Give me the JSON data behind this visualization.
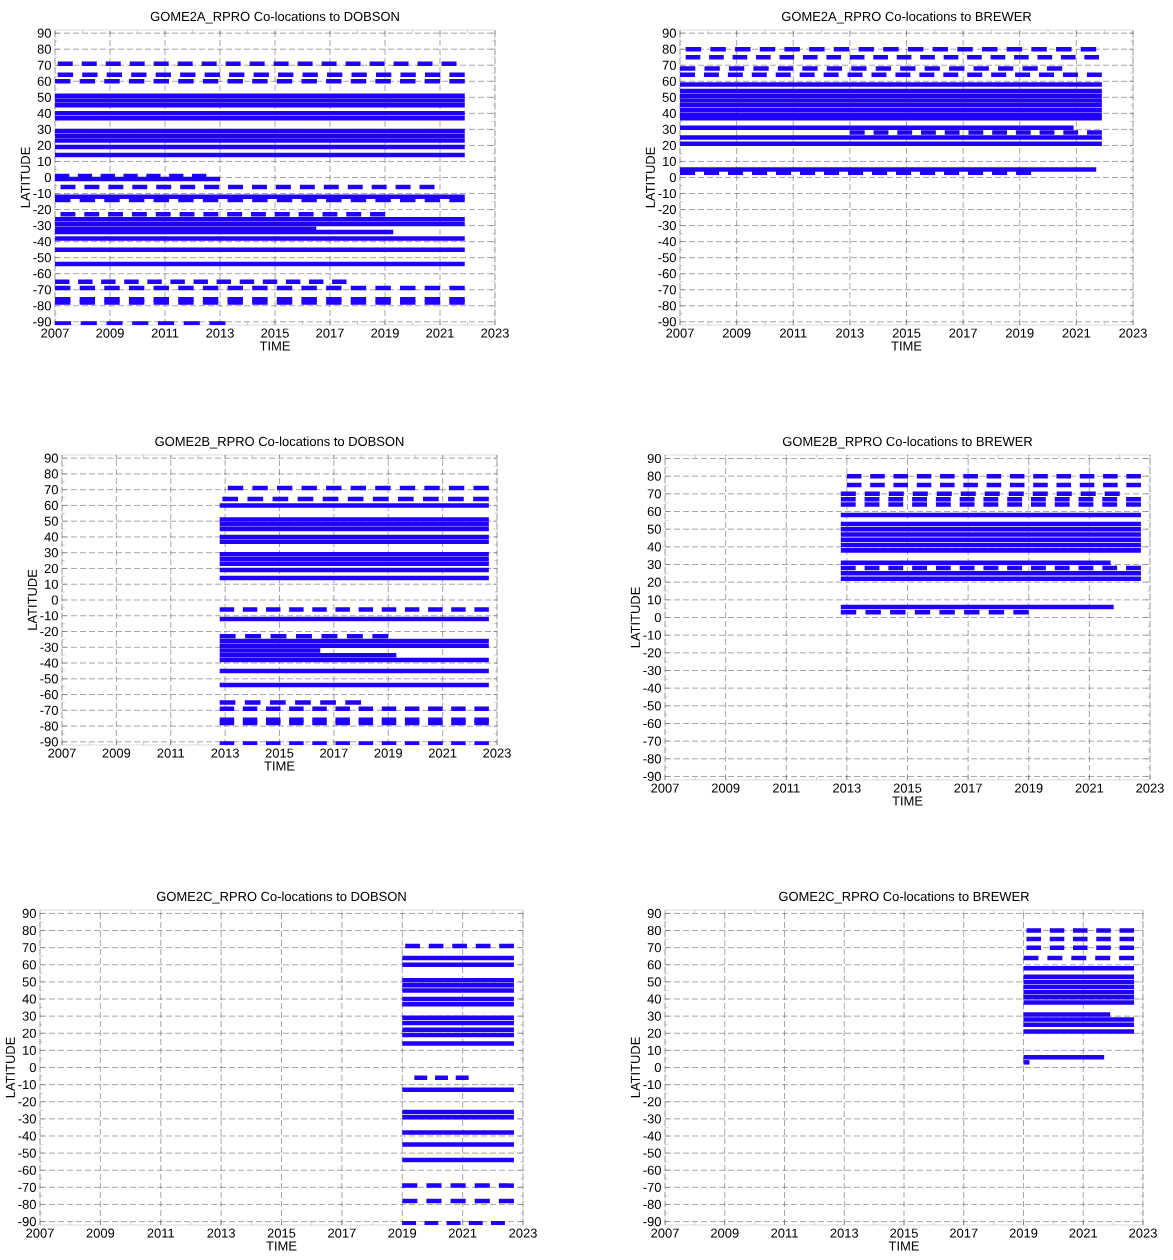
{
  "chart_data": [
    {
      "type": "line",
      "title": "GOME2A_RPRO Co-locations to DOBSON",
      "xlabel": "TIME",
      "ylabel": "LATITUDE",
      "xlim": [
        2007,
        2023
      ],
      "ylim": [
        -92,
        92
      ],
      "xticks": [
        2007,
        2009,
        2011,
        2013,
        2015,
        2017,
        2019,
        2021,
        2023
      ],
      "yticks": [
        -90,
        -80,
        -70,
        -60,
        -50,
        -40,
        -30,
        -20,
        -10,
        0,
        10,
        20,
        30,
        40,
        50,
        60,
        70,
        80,
        90
      ],
      "grid": true,
      "series": [
        {
          "color": "#1f00ff",
          "line_style": "dashed",
          "x": [
            2007.1,
            2021.6
          ],
          "values": [
            71,
            71
          ]
        },
        {
          "color": "#1f00ff",
          "line_style": "dashed",
          "x": [
            2007.1,
            2021.9
          ],
          "values": [
            64,
            64
          ]
        },
        {
          "color": "#1f00ff",
          "line_style": "dashed",
          "x": [
            2007,
            2021.9
          ],
          "values": [
            60,
            60
          ]
        },
        {
          "color": "#1f00ff",
          "line_style": "solid",
          "x": [
            2007,
            2021.9
          ],
          "values": [
            51,
            51
          ]
        },
        {
          "color": "#1f00ff",
          "line_style": "solid",
          "x": [
            2007,
            2021.9
          ],
          "values": [
            48,
            48
          ]
        },
        {
          "color": "#1f00ff",
          "line_style": "solid",
          "x": [
            2007,
            2021.9
          ],
          "values": [
            45,
            45
          ]
        },
        {
          "color": "#1f00ff",
          "line_style": "solid",
          "x": [
            2007,
            2021.9
          ],
          "values": [
            40,
            40
          ]
        },
        {
          "color": "#1f00ff",
          "line_style": "solid",
          "x": [
            2007,
            2021.9
          ],
          "values": [
            37,
            37
          ]
        },
        {
          "color": "#1f00ff",
          "line_style": "solid",
          "x": [
            2007,
            2021.9
          ],
          "values": [
            29,
            29
          ]
        },
        {
          "color": "#1f00ff",
          "line_style": "solid",
          "x": [
            2007,
            2021.9
          ],
          "values": [
            26,
            26
          ]
        },
        {
          "color": "#1f00ff",
          "line_style": "solid",
          "x": [
            2007,
            2021.9
          ],
          "values": [
            23,
            23
          ]
        },
        {
          "color": "#1f00ff",
          "line_style": "solid",
          "x": [
            2007,
            2021.9
          ],
          "values": [
            19,
            19
          ]
        },
        {
          "color": "#1f00ff",
          "line_style": "solid",
          "x": [
            2007,
            2021.9
          ],
          "values": [
            14,
            14
          ]
        },
        {
          "color": "#1f00ff",
          "line_style": "dashed",
          "x": [
            2007,
            2012.5
          ],
          "values": [
            1,
            1
          ]
        },
        {
          "color": "#1f00ff",
          "line_style": "solid",
          "x": [
            2007,
            2013
          ],
          "values": [
            -1,
            -1
          ]
        },
        {
          "color": "#1f00ff",
          "line_style": "dashed",
          "x": [
            2007.2,
            2020.8
          ],
          "values": [
            -6,
            -6
          ]
        },
        {
          "color": "#1f00ff",
          "line_style": "solid",
          "x": [
            2007,
            2021.9
          ],
          "values": [
            -12,
            -12
          ]
        },
        {
          "color": "#1f00ff",
          "line_style": "dashed",
          "x": [
            2007,
            2021.9
          ],
          "values": [
            -14,
            -14
          ]
        },
        {
          "color": "#1f00ff",
          "line_style": "dashed",
          "x": [
            2007.2,
            2019
          ],
          "values": [
            -23,
            -23
          ]
        },
        {
          "color": "#1f00ff",
          "line_style": "solid",
          "x": [
            2007,
            2021.9
          ],
          "values": [
            -26,
            -26
          ]
        },
        {
          "color": "#1f00ff",
          "line_style": "solid",
          "x": [
            2007,
            2021.9
          ],
          "values": [
            -29,
            -29
          ]
        },
        {
          "color": "#1f00ff",
          "line_style": "solid",
          "x": [
            2007,
            2016.5
          ],
          "values": [
            -32,
            -32
          ]
        },
        {
          "color": "#1f00ff",
          "line_style": "solid",
          "x": [
            2007,
            2019.3
          ],
          "values": [
            -34,
            -34
          ]
        },
        {
          "color": "#1f00ff",
          "line_style": "solid",
          "x": [
            2007,
            2021.9
          ],
          "values": [
            -38,
            -38
          ]
        },
        {
          "color": "#1f00ff",
          "line_style": "solid",
          "x": [
            2007,
            2021.9
          ],
          "values": [
            -45,
            -45
          ]
        },
        {
          "color": "#1f00ff",
          "line_style": "solid",
          "x": [
            2007,
            2021.9
          ],
          "values": [
            -54,
            -54
          ]
        },
        {
          "color": "#1f00ff",
          "line_style": "dashed",
          "x": [
            2007,
            2017.6
          ],
          "values": [
            -65,
            -65
          ]
        },
        {
          "color": "#1f00ff",
          "line_style": "dashed",
          "x": [
            2007,
            2021.9
          ],
          "values": [
            -69,
            -69
          ]
        },
        {
          "color": "#1f00ff",
          "line_style": "dashed",
          "x": [
            2007,
            2021.9
          ],
          "values": [
            -76,
            -76
          ]
        },
        {
          "color": "#1f00ff",
          "line_style": "dashed",
          "x": [
            2007,
            2021.9
          ],
          "values": [
            -78,
            -78
          ]
        },
        {
          "color": "#1f00ff",
          "line_style": "dashed",
          "x": [
            2007,
            2013.2
          ],
          "values": [
            -91,
            -91
          ]
        }
      ]
    },
    {
      "type": "line",
      "title": "GOME2A_RPRO Co-locations to BREWER",
      "xlabel": "TIME",
      "ylabel": "LATITUDE",
      "xlim": [
        2007,
        2023
      ],
      "ylim": [
        -92,
        92
      ],
      "xticks": [
        2007,
        2009,
        2011,
        2013,
        2015,
        2017,
        2019,
        2021,
        2023
      ],
      "yticks": [
        -90,
        -80,
        -70,
        -60,
        -50,
        -40,
        -30,
        -20,
        -10,
        0,
        10,
        20,
        30,
        40,
        50,
        60,
        70,
        80,
        90
      ],
      "grid": true,
      "series": [
        {
          "color": "#1f00ff",
          "line_style": "dashed",
          "x": [
            2007.2,
            2021.7
          ],
          "values": [
            80,
            80
          ]
        },
        {
          "color": "#1f00ff",
          "line_style": "dashed",
          "x": [
            2007.2,
            2021.8
          ],
          "values": [
            75,
            75
          ]
        },
        {
          "color": "#1f00ff",
          "line_style": "dashed",
          "x": [
            2007,
            2020.5
          ],
          "values": [
            68,
            68
          ]
        },
        {
          "color": "#1f00ff",
          "line_style": "dashed",
          "x": [
            2007,
            2021.9
          ],
          "values": [
            64,
            64
          ]
        },
        {
          "color": "#1f00ff",
          "line_style": "solid",
          "x": [
            2007,
            2021.9
          ],
          "values": [
            58,
            58
          ]
        },
        {
          "color": "#1f00ff",
          "line_style": "solid",
          "x": [
            2007,
            2021.9
          ],
          "values": [
            54,
            54
          ]
        },
        {
          "color": "#1f00ff",
          "line_style": "solid",
          "x": [
            2007,
            2021.9
          ],
          "values": [
            51,
            51
          ]
        },
        {
          "color": "#1f00ff",
          "line_style": "solid",
          "x": [
            2007,
            2021.9
          ],
          "values": [
            48,
            48
          ]
        },
        {
          "color": "#1f00ff",
          "line_style": "solid",
          "x": [
            2007,
            2021.9
          ],
          "values": [
            45,
            45
          ]
        },
        {
          "color": "#1f00ff",
          "line_style": "solid",
          "x": [
            2007,
            2021.9
          ],
          "values": [
            42,
            42
          ]
        },
        {
          "color": "#1f00ff",
          "line_style": "solid",
          "x": [
            2007,
            2021.9
          ],
          "values": [
            39,
            39
          ]
        },
        {
          "color": "#1f00ff",
          "line_style": "solid",
          "x": [
            2007,
            2021.9
          ],
          "values": [
            37,
            37
          ]
        },
        {
          "color": "#1f00ff",
          "line_style": "solid",
          "x": [
            2007,
            2020.9
          ],
          "values": [
            31,
            31
          ]
        },
        {
          "color": "#1f00ff",
          "line_style": "dashed",
          "x": [
            2013,
            2021.9
          ],
          "values": [
            28,
            28
          ]
        },
        {
          "color": "#1f00ff",
          "line_style": "solid",
          "x": [
            2007,
            2021.9
          ],
          "values": [
            25,
            25
          ]
        },
        {
          "color": "#1f00ff",
          "line_style": "solid",
          "x": [
            2007,
            2021.9
          ],
          "values": [
            21,
            21
          ]
        },
        {
          "color": "#1f00ff",
          "line_style": "solid",
          "x": [
            2007,
            2021.7
          ],
          "values": [
            5,
            5
          ]
        },
        {
          "color": "#1f00ff",
          "line_style": "dashed",
          "x": [
            2007,
            2019.4
          ],
          "values": [
            3,
            3
          ]
        }
      ]
    },
    {
      "type": "line",
      "title": "GOME2B_RPRO Co-locations to DOBSON",
      "xlabel": "TIME",
      "ylabel": "LATITUDE",
      "xlim": [
        2007,
        2023
      ],
      "ylim": [
        -92,
        92
      ],
      "xticks": [
        2007,
        2009,
        2011,
        2013,
        2015,
        2017,
        2019,
        2021,
        2023
      ],
      "yticks": [
        -90,
        -80,
        -70,
        -60,
        -50,
        -40,
        -30,
        -20,
        -10,
        0,
        10,
        20,
        30,
        40,
        50,
        60,
        70,
        80,
        90
      ],
      "grid": true,
      "series": [
        {
          "color": "#1f00ff",
          "line_style": "dashed",
          "x": [
            2013.1,
            2022.7
          ],
          "values": [
            71,
            71
          ]
        },
        {
          "color": "#1f00ff",
          "line_style": "dashed",
          "x": [
            2012.9,
            2022.7
          ],
          "values": [
            64,
            64
          ]
        },
        {
          "color": "#1f00ff",
          "line_style": "solid",
          "x": [
            2012.8,
            2022.7
          ],
          "values": [
            60,
            60
          ]
        },
        {
          "color": "#1f00ff",
          "line_style": "solid",
          "x": [
            2012.8,
            2022.7
          ],
          "values": [
            51,
            51
          ]
        },
        {
          "color": "#1f00ff",
          "line_style": "solid",
          "x": [
            2012.8,
            2022.7
          ],
          "values": [
            48,
            48
          ]
        },
        {
          "color": "#1f00ff",
          "line_style": "solid",
          "x": [
            2012.8,
            2022.7
          ],
          "values": [
            45,
            45
          ]
        },
        {
          "color": "#1f00ff",
          "line_style": "solid",
          "x": [
            2012.8,
            2022.7
          ],
          "values": [
            40,
            40
          ]
        },
        {
          "color": "#1f00ff",
          "line_style": "solid",
          "x": [
            2012.8,
            2022.7
          ],
          "values": [
            37,
            37
          ]
        },
        {
          "color": "#1f00ff",
          "line_style": "solid",
          "x": [
            2012.8,
            2022.7
          ],
          "values": [
            29,
            29
          ]
        },
        {
          "color": "#1f00ff",
          "line_style": "solid",
          "x": [
            2012.8,
            2022.7
          ],
          "values": [
            26,
            26
          ]
        },
        {
          "color": "#1f00ff",
          "line_style": "solid",
          "x": [
            2012.8,
            2022.7
          ],
          "values": [
            23,
            23
          ]
        },
        {
          "color": "#1f00ff",
          "line_style": "solid",
          "x": [
            2012.8,
            2022.7
          ],
          "values": [
            19,
            19
          ]
        },
        {
          "color": "#1f00ff",
          "line_style": "solid",
          "x": [
            2012.8,
            2022.7
          ],
          "values": [
            14,
            14
          ]
        },
        {
          "color": "#1f00ff",
          "line_style": "dashed",
          "x": [
            2012.8,
            2022.7
          ],
          "values": [
            -6,
            -6
          ]
        },
        {
          "color": "#1f00ff",
          "line_style": "solid",
          "x": [
            2012.8,
            2022.7
          ],
          "values": [
            -12,
            -12
          ]
        },
        {
          "color": "#1f00ff",
          "line_style": "dashed",
          "x": [
            2012.8,
            2019
          ],
          "values": [
            -23,
            -23
          ]
        },
        {
          "color": "#1f00ff",
          "line_style": "solid",
          "x": [
            2012.8,
            2022.7
          ],
          "values": [
            -26,
            -26
          ]
        },
        {
          "color": "#1f00ff",
          "line_style": "solid",
          "x": [
            2012.8,
            2022.7
          ],
          "values": [
            -29,
            -29
          ]
        },
        {
          "color": "#1f00ff",
          "line_style": "solid",
          "x": [
            2012.8,
            2016.5
          ],
          "values": [
            -32,
            -32
          ]
        },
        {
          "color": "#1f00ff",
          "line_style": "solid",
          "x": [
            2012.8,
            2019.3
          ],
          "values": [
            -35,
            -35
          ]
        },
        {
          "color": "#1f00ff",
          "line_style": "solid",
          "x": [
            2012.8,
            2022.7
          ],
          "values": [
            -38,
            -38
          ]
        },
        {
          "color": "#1f00ff",
          "line_style": "solid",
          "x": [
            2012.8,
            2022.7
          ],
          "values": [
            -45,
            -45
          ]
        },
        {
          "color": "#1f00ff",
          "line_style": "solid",
          "x": [
            2012.8,
            2022.7
          ],
          "values": [
            -54,
            -54
          ]
        },
        {
          "color": "#1f00ff",
          "line_style": "dashed",
          "x": [
            2012.8,
            2018
          ],
          "values": [
            -65,
            -65
          ]
        },
        {
          "color": "#1f00ff",
          "line_style": "dashed",
          "x": [
            2012.8,
            2022.7
          ],
          "values": [
            -69,
            -69
          ]
        },
        {
          "color": "#1f00ff",
          "line_style": "dashed",
          "x": [
            2012.8,
            2022.7
          ],
          "values": [
            -76,
            -76
          ]
        },
        {
          "color": "#1f00ff",
          "line_style": "dashed",
          "x": [
            2012.8,
            2022.7
          ],
          "values": [
            -78,
            -78
          ]
        },
        {
          "color": "#1f00ff",
          "line_style": "dashed",
          "x": [
            2012.8,
            2022.7
          ],
          "values": [
            -91,
            -91
          ]
        }
      ]
    },
    {
      "type": "line",
      "title": "GOME2B_RPRO Co-locations to BREWER",
      "xlabel": "TIME",
      "ylabel": "LATITUDE",
      "xlim": [
        2007,
        2023
      ],
      "ylim": [
        -92,
        92
      ],
      "xticks": [
        2007,
        2009,
        2011,
        2013,
        2015,
        2017,
        2019,
        2021,
        2023
      ],
      "yticks": [
        -90,
        -80,
        -70,
        -60,
        -50,
        -40,
        -30,
        -20,
        -10,
        0,
        10,
        20,
        30,
        40,
        50,
        60,
        70,
        80,
        90
      ],
      "grid": true,
      "series": [
        {
          "color": "#1f00ff",
          "line_style": "dashed",
          "x": [
            2013,
            2022.7
          ],
          "values": [
            80,
            80
          ]
        },
        {
          "color": "#1f00ff",
          "line_style": "dashed",
          "x": [
            2013,
            2022.7
          ],
          "values": [
            75,
            75
          ]
        },
        {
          "color": "#1f00ff",
          "line_style": "dashed",
          "x": [
            2012.8,
            2022
          ],
          "values": [
            70,
            70
          ]
        },
        {
          "color": "#1f00ff",
          "line_style": "dashed",
          "x": [
            2012.8,
            2022.7
          ],
          "values": [
            67,
            67
          ]
        },
        {
          "color": "#1f00ff",
          "line_style": "dashed",
          "x": [
            2012.8,
            2022.7
          ],
          "values": [
            64,
            64
          ]
        },
        {
          "color": "#1f00ff",
          "line_style": "solid",
          "x": [
            2012.8,
            2022.7
          ],
          "values": [
            58,
            58
          ]
        },
        {
          "color": "#1f00ff",
          "line_style": "solid",
          "x": [
            2012.8,
            2022.7
          ],
          "values": [
            53,
            53
          ]
        },
        {
          "color": "#1f00ff",
          "line_style": "solid",
          "x": [
            2012.8,
            2022.7
          ],
          "values": [
            50,
            50
          ]
        },
        {
          "color": "#1f00ff",
          "line_style": "solid",
          "x": [
            2012.8,
            2022.7
          ],
          "values": [
            47,
            47
          ]
        },
        {
          "color": "#1f00ff",
          "line_style": "solid",
          "x": [
            2012.8,
            2022.7
          ],
          "values": [
            44,
            44
          ]
        },
        {
          "color": "#1f00ff",
          "line_style": "solid",
          "x": [
            2012.8,
            2022.7
          ],
          "values": [
            41,
            41
          ]
        },
        {
          "color": "#1f00ff",
          "line_style": "solid",
          "x": [
            2012.8,
            2022.7
          ],
          "values": [
            38,
            38
          ]
        },
        {
          "color": "#1f00ff",
          "line_style": "solid",
          "x": [
            2012.8,
            2021.7
          ],
          "values": [
            31,
            31
          ]
        },
        {
          "color": "#1f00ff",
          "line_style": "dashed",
          "x": [
            2012.8,
            2022.7
          ],
          "values": [
            28,
            28
          ]
        },
        {
          "color": "#1f00ff",
          "line_style": "solid",
          "x": [
            2012.8,
            2022.7
          ],
          "values": [
            25,
            25
          ]
        },
        {
          "color": "#1f00ff",
          "line_style": "solid",
          "x": [
            2012.8,
            2022.7
          ],
          "values": [
            22,
            22
          ]
        },
        {
          "color": "#1f00ff",
          "line_style": "solid",
          "x": [
            2012.8,
            2021.8
          ],
          "values": [
            6,
            6
          ]
        },
        {
          "color": "#1f00ff",
          "line_style": "dashed",
          "x": [
            2012.8,
            2019
          ],
          "values": [
            3,
            3
          ]
        }
      ]
    },
    {
      "type": "line",
      "title": "GOME2C_RPRO Co-locations to DOBSON",
      "xlabel": "TIME",
      "ylabel": "LATITUDE",
      "xlim": [
        2007,
        2023
      ],
      "ylim": [
        -92,
        92
      ],
      "xticks": [
        2007,
        2009,
        2011,
        2013,
        2015,
        2017,
        2019,
        2021,
        2023
      ],
      "yticks": [
        -90,
        -80,
        -70,
        -60,
        -50,
        -40,
        -30,
        -20,
        -10,
        0,
        10,
        20,
        30,
        40,
        50,
        60,
        70,
        80,
        90
      ],
      "grid": true,
      "series": [
        {
          "color": "#1f00ff",
          "line_style": "dashed",
          "x": [
            2019.1,
            2022.7
          ],
          "values": [
            71,
            71
          ]
        },
        {
          "color": "#1f00ff",
          "line_style": "solid",
          "x": [
            2019,
            2022.7
          ],
          "values": [
            64,
            64
          ]
        },
        {
          "color": "#1f00ff",
          "line_style": "solid",
          "x": [
            2019,
            2022.7
          ],
          "values": [
            60,
            60
          ]
        },
        {
          "color": "#1f00ff",
          "line_style": "solid",
          "x": [
            2019,
            2022.7
          ],
          "values": [
            51,
            51
          ]
        },
        {
          "color": "#1f00ff",
          "line_style": "solid",
          "x": [
            2019,
            2022.7
          ],
          "values": [
            48,
            48
          ]
        },
        {
          "color": "#1f00ff",
          "line_style": "solid",
          "x": [
            2019,
            2022.7
          ],
          "values": [
            45,
            45
          ]
        },
        {
          "color": "#1f00ff",
          "line_style": "solid",
          "x": [
            2019,
            2022.7
          ],
          "values": [
            40,
            40
          ]
        },
        {
          "color": "#1f00ff",
          "line_style": "solid",
          "x": [
            2019,
            2022.7
          ],
          "values": [
            37,
            37
          ]
        },
        {
          "color": "#1f00ff",
          "line_style": "solid",
          "x": [
            2019,
            2022.7
          ],
          "values": [
            29,
            29
          ]
        },
        {
          "color": "#1f00ff",
          "line_style": "solid",
          "x": [
            2019,
            2022.7
          ],
          "values": [
            26,
            26
          ]
        },
        {
          "color": "#1f00ff",
          "line_style": "solid",
          "x": [
            2019,
            2022.7
          ],
          "values": [
            22,
            22
          ]
        },
        {
          "color": "#1f00ff",
          "line_style": "solid",
          "x": [
            2019,
            2022.7
          ],
          "values": [
            19,
            19
          ]
        },
        {
          "color": "#1f00ff",
          "line_style": "solid",
          "x": [
            2019,
            2022.7
          ],
          "values": [
            14,
            14
          ]
        },
        {
          "color": "#1f00ff",
          "line_style": "dashed",
          "x": [
            2019.4,
            2021.2
          ],
          "values": [
            -6,
            -6
          ]
        },
        {
          "color": "#1f00ff",
          "line_style": "solid",
          "x": [
            2019,
            2022.7
          ],
          "values": [
            -13,
            -13
          ]
        },
        {
          "color": "#1f00ff",
          "line_style": "solid",
          "x": [
            2019,
            2022.7
          ],
          "values": [
            -26,
            -26
          ]
        },
        {
          "color": "#1f00ff",
          "line_style": "solid",
          "x": [
            2019,
            2022.7
          ],
          "values": [
            -29,
            -29
          ]
        },
        {
          "color": "#1f00ff",
          "line_style": "solid",
          "x": [
            2019,
            2022.7
          ],
          "values": [
            -38,
            -38
          ]
        },
        {
          "color": "#1f00ff",
          "line_style": "solid",
          "x": [
            2019,
            2022.7
          ],
          "values": [
            -45,
            -45
          ]
        },
        {
          "color": "#1f00ff",
          "line_style": "solid",
          "x": [
            2019,
            2022.7
          ],
          "values": [
            -54,
            -54
          ]
        },
        {
          "color": "#1f00ff",
          "line_style": "dashed",
          "x": [
            2019,
            2022.7
          ],
          "values": [
            -69,
            -69
          ]
        },
        {
          "color": "#1f00ff",
          "line_style": "dashed",
          "x": [
            2019,
            2022.7
          ],
          "values": [
            -78,
            -78
          ]
        },
        {
          "color": "#1f00ff",
          "line_style": "dashed",
          "x": [
            2019,
            2022.4
          ],
          "values": [
            -91,
            -91
          ]
        }
      ]
    },
    {
      "type": "line",
      "title": "GOME2C_RPRO Co-locations to BREWER",
      "xlabel": "TIME",
      "ylabel": "LATITUDE",
      "xlim": [
        2007,
        2023
      ],
      "ylim": [
        -92,
        92
      ],
      "xticks": [
        2007,
        2009,
        2011,
        2013,
        2015,
        2017,
        2019,
        2021,
        2023
      ],
      "yticks": [
        -90,
        -80,
        -70,
        -60,
        -50,
        -40,
        -30,
        -20,
        -10,
        0,
        10,
        20,
        30,
        40,
        50,
        60,
        70,
        80,
        90
      ],
      "grid": true,
      "series": [
        {
          "color": "#1f00ff",
          "line_style": "dashed",
          "x": [
            2019.1,
            2022.7
          ],
          "values": [
            80,
            80
          ]
        },
        {
          "color": "#1f00ff",
          "line_style": "dashed",
          "x": [
            2019.1,
            2022.7
          ],
          "values": [
            75,
            75
          ]
        },
        {
          "color": "#1f00ff",
          "line_style": "dashed",
          "x": [
            2019.1,
            2022.7
          ],
          "values": [
            70,
            70
          ]
        },
        {
          "color": "#1f00ff",
          "line_style": "dashed",
          "x": [
            2019,
            2022.7
          ],
          "values": [
            64,
            64
          ]
        },
        {
          "color": "#1f00ff",
          "line_style": "solid",
          "x": [
            2019,
            2022.7
          ],
          "values": [
            58,
            58
          ]
        },
        {
          "color": "#1f00ff",
          "line_style": "solid",
          "x": [
            2019,
            2022.7
          ],
          "values": [
            53,
            53
          ]
        },
        {
          "color": "#1f00ff",
          "line_style": "solid",
          "x": [
            2019,
            2022.7
          ],
          "values": [
            50,
            50
          ]
        },
        {
          "color": "#1f00ff",
          "line_style": "solid",
          "x": [
            2019,
            2022.7
          ],
          "values": [
            47,
            47
          ]
        },
        {
          "color": "#1f00ff",
          "line_style": "solid",
          "x": [
            2019,
            2022.7
          ],
          "values": [
            44,
            44
          ]
        },
        {
          "color": "#1f00ff",
          "line_style": "solid",
          "x": [
            2019,
            2022.7
          ],
          "values": [
            41,
            41
          ]
        },
        {
          "color": "#1f00ff",
          "line_style": "solid",
          "x": [
            2019,
            2022.7
          ],
          "values": [
            38,
            38
          ]
        },
        {
          "color": "#1f00ff",
          "line_style": "solid",
          "x": [
            2019,
            2021.9
          ],
          "values": [
            31,
            31
          ]
        },
        {
          "color": "#1f00ff",
          "line_style": "solid",
          "x": [
            2019,
            2022.7
          ],
          "values": [
            28,
            28
          ]
        },
        {
          "color": "#1f00ff",
          "line_style": "solid",
          "x": [
            2019,
            2022.7
          ],
          "values": [
            25,
            25
          ]
        },
        {
          "color": "#1f00ff",
          "line_style": "solid",
          "x": [
            2019,
            2022.7
          ],
          "values": [
            21,
            21
          ]
        },
        {
          "color": "#1f00ff",
          "line_style": "solid",
          "x": [
            2019,
            2021.7
          ],
          "values": [
            6,
            6
          ]
        },
        {
          "color": "#1f00ff",
          "line_style": "solid",
          "x": [
            2019,
            2019.2
          ],
          "values": [
            3,
            3
          ]
        }
      ]
    }
  ]
}
